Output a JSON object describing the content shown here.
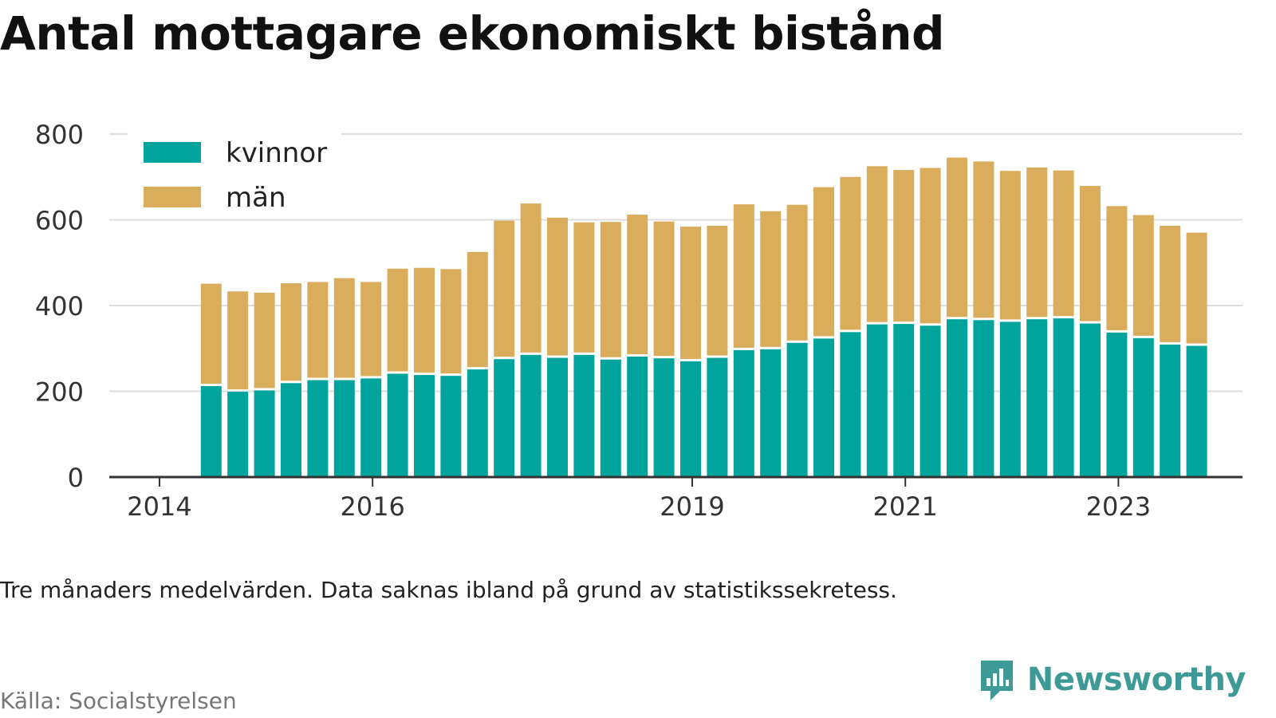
{
  "title": "Antal mottagare ekonomiskt bistånd",
  "note": "Tre månaders medelvärden. Data saknas ibland på grund av statistikssekretess.",
  "source": "Källa: Socialstyrelsen",
  "brand": "Newsworthy",
  "colors": {
    "kvinnor": "#00a49c",
    "man": "#d9ad5b",
    "brand": "#3e9a96",
    "grid": "#dddddd"
  },
  "chart_data": {
    "type": "bar",
    "stacked": true,
    "ylim": [
      0,
      800
    ],
    "yticks": [
      0,
      200,
      400,
      600,
      800
    ],
    "xlim": [
      2014,
      2024.5
    ],
    "xticks": [
      2014,
      2016,
      2019,
      2021,
      2023
    ],
    "grid": true,
    "legend_position": "top-left",
    "x": [
      2014.5,
      2014.75,
      2015,
      2015.25,
      2015.5,
      2015.75,
      2016,
      2016.25,
      2016.5,
      2016.75,
      2017,
      2017.25,
      2017.5,
      2017.75,
      2018,
      2018.25,
      2018.5,
      2018.75,
      2019,
      2019.25,
      2019.5,
      2019.75,
      2020,
      2020.25,
      2020.5,
      2020.75,
      2021,
      2021.25,
      2021.5,
      2021.75,
      2022,
      2022.25,
      2022.5,
      2022.75,
      2023,
      2023.25,
      2023.5,
      2023.75
    ],
    "series": [
      {
        "name": "kvinnor",
        "values": [
          212,
          199,
          202,
          219,
          226,
          226,
          230,
          241,
          238,
          236,
          251,
          275,
          285,
          278,
          285,
          274,
          281,
          277,
          270,
          278,
          296,
          298,
          313,
          323,
          338,
          356,
          357,
          353,
          368,
          366,
          362,
          368,
          370,
          358,
          337,
          324,
          309,
          306
        ]
      },
      {
        "name": "män",
        "values": [
          239,
          234,
          228,
          233,
          229,
          238,
          225,
          245,
          250,
          249,
          274,
          323,
          353,
          327,
          309,
          321,
          331,
          319,
          314,
          308,
          340,
          322,
          322,
          353,
          362,
          369,
          359,
          368,
          377,
          370,
          352,
          354,
          345,
          321,
          295,
          287,
          277,
          264
        ]
      }
    ]
  }
}
